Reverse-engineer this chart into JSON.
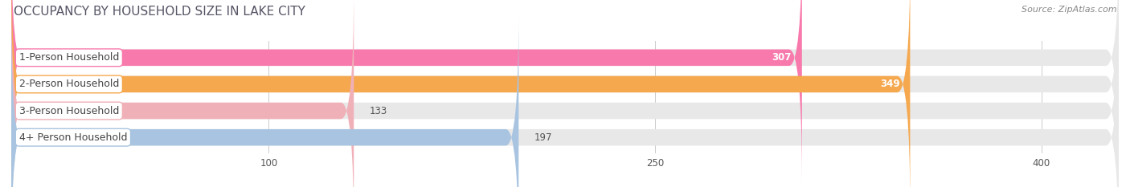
{
  "title": "OCCUPANCY BY HOUSEHOLD SIZE IN LAKE CITY",
  "source": "Source: ZipAtlas.com",
  "categories": [
    "1-Person Household",
    "2-Person Household",
    "3-Person Household",
    "4+ Person Household"
  ],
  "values": [
    307,
    349,
    133,
    197
  ],
  "bar_colors": [
    "#f87aac",
    "#f5a84e",
    "#f0b0b8",
    "#a8c4e0"
  ],
  "label_border_colors": [
    "#f87aac",
    "#f5a84e",
    "#f0b0b8",
    "#a8c4e0"
  ],
  "xlim": [
    0,
    430
  ],
  "xticks": [
    100,
    250,
    400
  ],
  "title_fontsize": 11,
  "label_fontsize": 9,
  "value_fontsize": 8.5,
  "source_fontsize": 8,
  "bar_height": 0.62,
  "bg_bar_color": "#e8e8e8",
  "gap_color": "#ffffff",
  "background_color": "#ffffff"
}
